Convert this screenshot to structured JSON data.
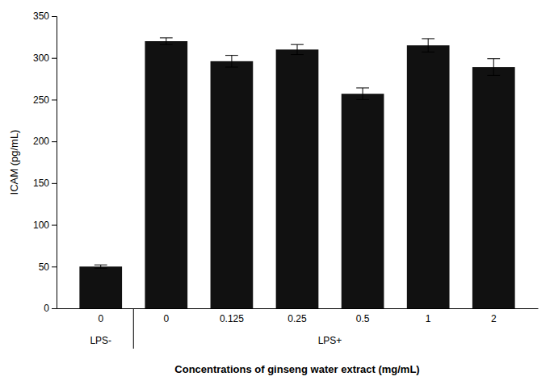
{
  "chart_data": {
    "type": "bar",
    "categories": [
      "0",
      "0",
      "0.125",
      "0.25",
      "0.5",
      "1",
      "2"
    ],
    "values": [
      50,
      320,
      296,
      310,
      257,
      315,
      289
    ],
    "errors": [
      2,
      4,
      7,
      6,
      7,
      8,
      10
    ],
    "color": "#111111",
    "group_labels": [
      "LPS-",
      "LPS+"
    ],
    "xlabel": "Concentrations of ginseng water extract (mg/mL)",
    "ylabel": "ICAM (pg/mL)",
    "ylim": [
      0,
      350
    ],
    "yticks": [
      0,
      50,
      100,
      150,
      200,
      250,
      300,
      350
    ],
    "grid": false
  }
}
